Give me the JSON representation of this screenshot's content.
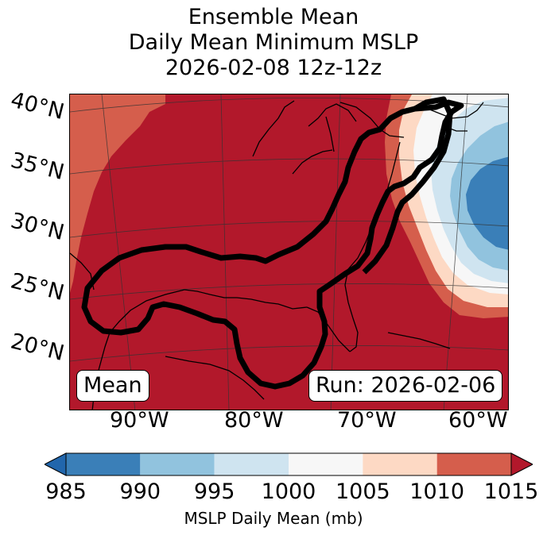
{
  "title": {
    "line1": "Ensemble Mean",
    "line2": "Daily Mean Minimum MSLP",
    "line3": "2026-02-08 12z-12z"
  },
  "lat_labels": [
    "40°N",
    "35°N",
    "30°N",
    "25°N",
    "20°N"
  ],
  "lon_labels": [
    "90°W",
    "80°W",
    "70°W",
    "60°W"
  ],
  "mean_label": "Mean",
  "run_label": "Run: 2026-02-06",
  "colorbar": {
    "ticks": [
      "985",
      "990",
      "995",
      "1000",
      "1005",
      "1010",
      "1015"
    ],
    "colors": [
      "#3a7fb8",
      "#91c3de",
      "#cfe4f0",
      "#f7f7f7",
      "#fdd9c4",
      "#d55e4c",
      "#b2182b"
    ],
    "label": "MSLP Daily Mean (mb)"
  }
}
